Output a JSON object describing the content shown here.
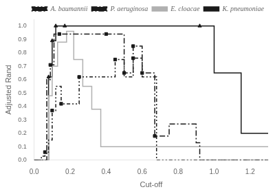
{
  "chart_data": {
    "type": "step",
    "xlabel": "Cut-off",
    "ylabel": "Adjusted Rand",
    "xlim": [
      0,
      1.3
    ],
    "ylim": [
      0,
      1.05
    ],
    "xticks": [
      {
        "value": 0,
        "label": "0.0"
      },
      0.2,
      0.4,
      0.6,
      0.8,
      {
        "value": 1.0,
        "label": "1.0"
      },
      1.2
    ],
    "yticks": [
      {
        "value": 0,
        "label": "0.0"
      },
      0.1,
      0.2,
      0.3,
      0.4,
      0.5,
      0.6,
      0.7,
      0.8,
      0.9,
      {
        "value": 1.0,
        "label": "1.0"
      }
    ],
    "grid": false,
    "legend": "upper right",
    "series": [
      {
        "name": "K. pneumoniae",
        "color": "#1a1a1a",
        "line_style": "solid",
        "marker": "triangle",
        "x": [
          0.0,
          0.05,
          0.08,
          0.1,
          0.12,
          0.17,
          0.92,
          1.0,
          1.15,
          1.3
        ],
        "values": [
          0.0,
          0.0,
          0.62,
          0.89,
          1.0,
          1.0,
          1.0,
          0.65,
          0.2,
          0.2
        ],
        "marker_x": [
          0.08,
          0.1,
          0.12,
          0.17,
          0.92
        ],
        "marker_values": [
          0.62,
          0.89,
          1.0,
          1.0,
          1.0
        ]
      },
      {
        "name": "E. cloacae",
        "color": "#b0b0b0",
        "line_style": "solid",
        "x": [
          0.0,
          0.06,
          0.08,
          0.1,
          0.13,
          0.18,
          0.22,
          0.27,
          0.32,
          0.37,
          1.3
        ],
        "values": [
          0.0,
          0.0,
          0.48,
          0.7,
          0.88,
          0.96,
          0.75,
          0.55,
          0.38,
          0.1,
          0.1
        ]
      },
      {
        "name": "P. aeruginosa",
        "color": "#1a1a1a",
        "line_style": "dash-dot",
        "marker": "square",
        "x": [
          0.0,
          0.04,
          0.07,
          0.09,
          0.11,
          0.14,
          0.4,
          0.5,
          0.55,
          0.6,
          0.65,
          0.67,
          0.75,
          0.8,
          0.9,
          0.92,
          1.3
        ],
        "values": [
          0.0,
          0.0,
          0.6,
          0.71,
          0.94,
          0.94,
          0.94,
          0.65,
          0.85,
          0.65,
          0.65,
          0.18,
          0.27,
          0.27,
          0.13,
          0.0,
          0.0
        ],
        "marker_x": [
          0.09,
          0.14,
          0.4,
          0.5,
          0.55,
          0.6,
          0.67
        ],
        "marker_values": [
          0.71,
          0.94,
          0.94,
          0.65,
          0.85,
          0.65,
          0.18
        ]
      },
      {
        "name": "A. baumannii",
        "color": "#1a1a1a",
        "line_style": "dash-dot-dot",
        "marker": "square",
        "x": [
          0.0,
          0.04,
          0.06,
          0.08,
          0.1,
          0.12,
          0.15,
          0.25,
          0.4,
          0.45,
          0.5,
          0.55,
          0.6,
          0.65,
          0.68,
          1.3
        ],
        "values": [
          0.0,
          0.03,
          0.06,
          0.15,
          0.37,
          0.55,
          0.42,
          0.62,
          0.62,
          0.75,
          0.62,
          0.76,
          0.62,
          0.62,
          0.0,
          0.0
        ],
        "marker_x": [
          0.06,
          0.1,
          0.15,
          0.25,
          0.45,
          0.55
        ],
        "marker_values": [
          0.06,
          0.37,
          0.42,
          0.62,
          0.75,
          0.76
        ]
      }
    ]
  }
}
